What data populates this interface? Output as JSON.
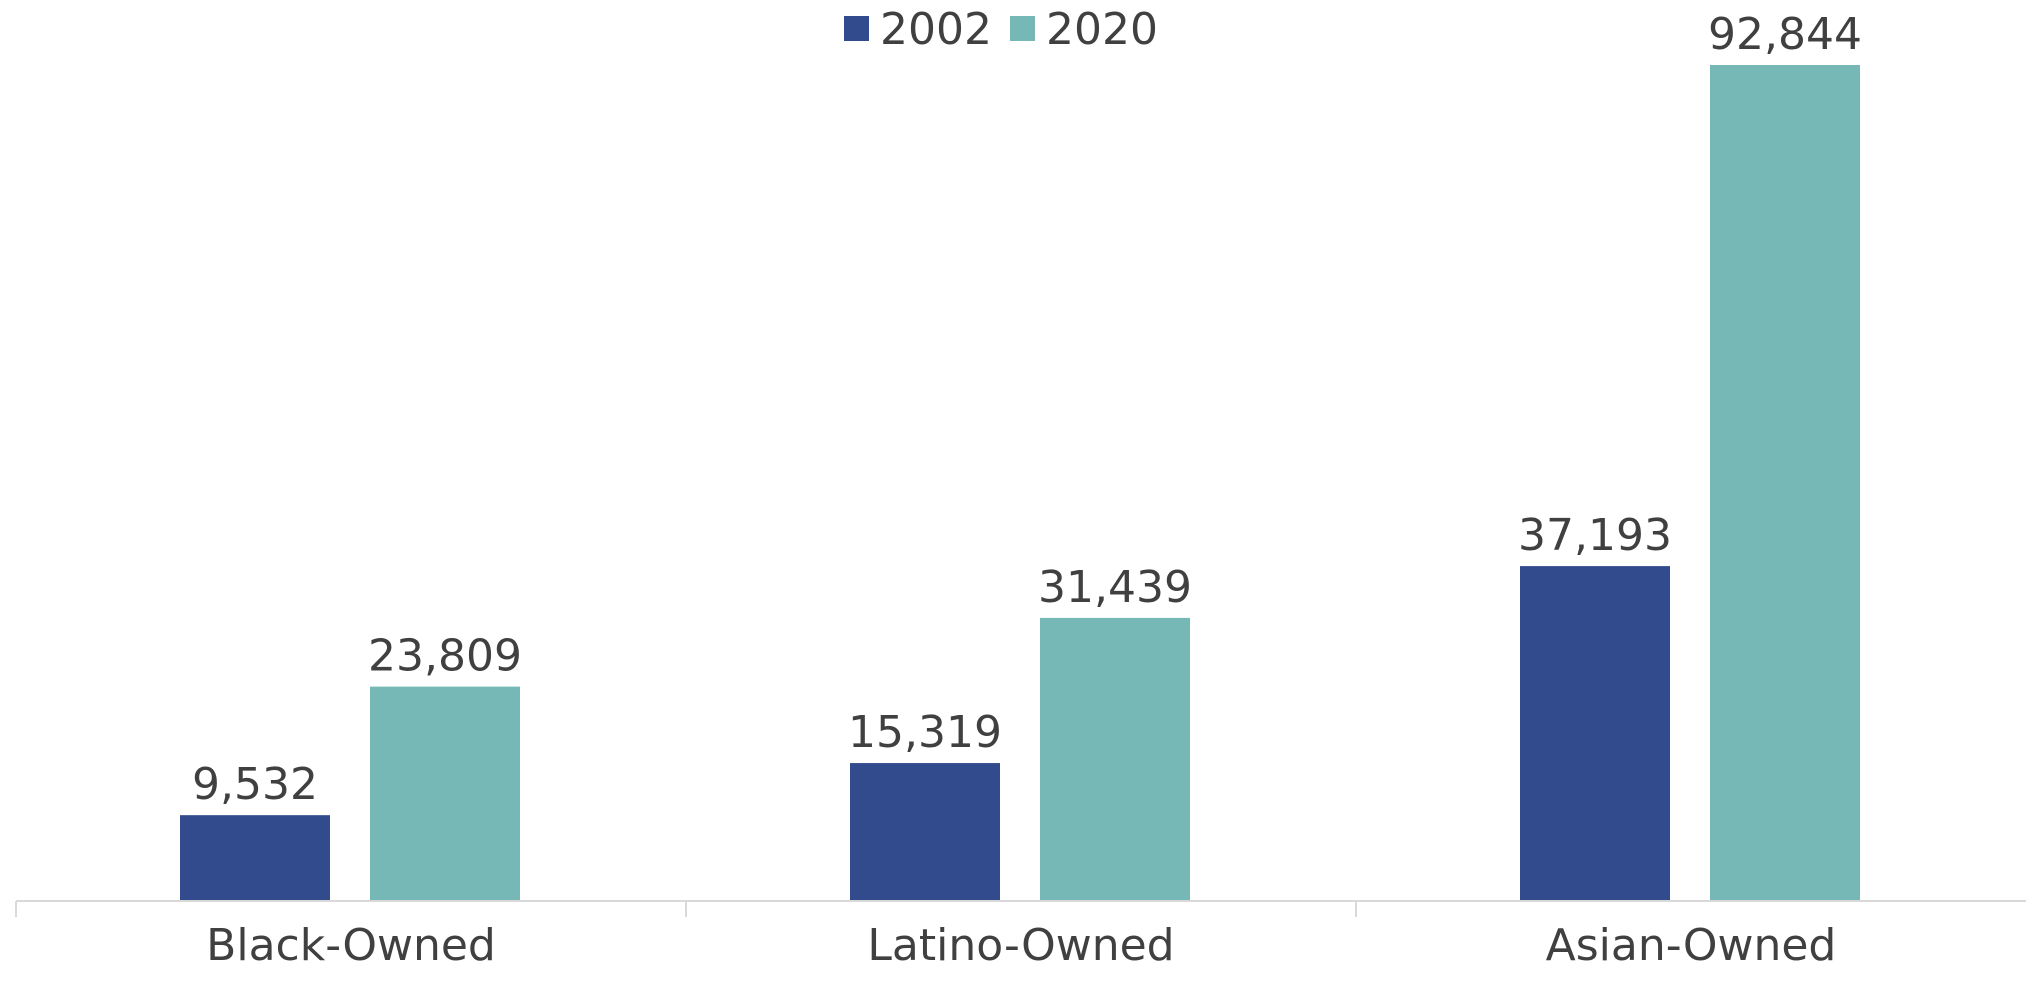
{
  "chart_data": {
    "type": "bar",
    "categories": [
      "Black-Owned",
      "Latino-Owned",
      "Asian-Owned"
    ],
    "series": [
      {
        "name": "2002",
        "color": "#324b8c",
        "values": [
          9532,
          15319,
          37193
        ],
        "labels": [
          "9,532",
          "15,319",
          "37,193"
        ]
      },
      {
        "name": "2020",
        "color": "#75b8b5",
        "values": [
          23809,
          31439,
          92844
        ],
        "labels": [
          "23,809",
          "31,439",
          "92,844"
        ]
      }
    ],
    "ylim": [
      0,
      92844
    ],
    "legend_position": "top-center",
    "grid": false
  }
}
